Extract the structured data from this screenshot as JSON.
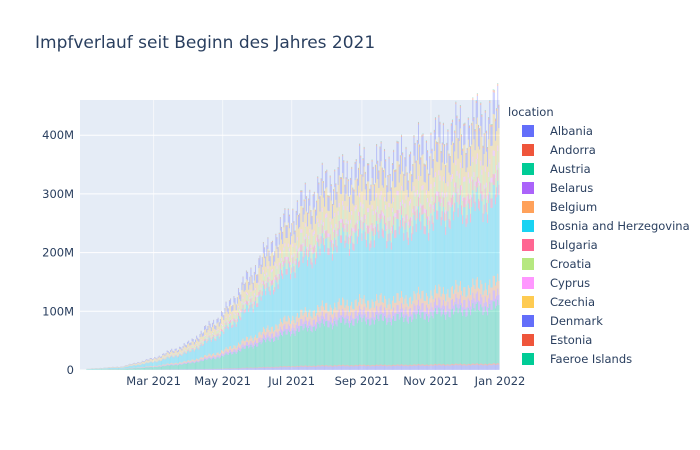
{
  "chart_data": {
    "type": "bar",
    "barmode": "stack",
    "title": "Impfverlauf seit Beginn des Jahres 2021",
    "xlabel": "",
    "ylabel": "",
    "x_ticks": [
      "Mar 2021",
      "May 2021",
      "Jul 2021",
      "Sep 2021",
      "Nov 2021",
      "Jan 2022"
    ],
    "x_range": [
      "2020-12-26",
      "2022-01-01"
    ],
    "y_ticks": [
      "0",
      "100M",
      "200M",
      "300M",
      "400M"
    ],
    "ylim": [
      0,
      460000000
    ],
    "grid": true,
    "legend": {
      "title": "location",
      "placement": "right",
      "entries": [
        {
          "name": "Albania",
          "color": "#636efa"
        },
        {
          "name": "Andorra",
          "color": "#EF553B"
        },
        {
          "name": "Austria",
          "color": "#00cc96"
        },
        {
          "name": "Belarus",
          "color": "#ab63fa"
        },
        {
          "name": "Belgium",
          "color": "#FFA15A"
        },
        {
          "name": "Bosnia and Herzegovina",
          "color": "#19d3f3"
        },
        {
          "name": "Bulgaria",
          "color": "#FF6692"
        },
        {
          "name": "Croatia",
          "color": "#B6E880"
        },
        {
          "name": "Cyprus",
          "color": "#FF97FF"
        },
        {
          "name": "Czechia",
          "color": "#FECB52"
        },
        {
          "name": "Denmark",
          "color": "#636efa"
        },
        {
          "name": "Estonia",
          "color": "#EF553B"
        },
        {
          "name": "Faeroe Islands",
          "color": "#00cc96"
        }
      ]
    },
    "total_stack_by_date": {
      "x": [
        "2021-01-01",
        "2021-02-01",
        "2021-03-01",
        "2021-04-01",
        "2021-05-01",
        "2021-06-01",
        "2021-07-01",
        "2021-08-01",
        "2021-09-01",
        "2021-10-01",
        "2021-11-01",
        "2021-12-01",
        "2021-12-31"
      ],
      "y": [
        2000000,
        6000000,
        20000000,
        45000000,
        95000000,
        180000000,
        265000000,
        320000000,
        345000000,
        355000000,
        385000000,
        415000000,
        440000000
      ]
    },
    "series_share_of_total": [
      0.015,
      0.004,
      0.17,
      0.03,
      0.04,
      0.25,
      0.03,
      0.05,
      0.015,
      0.1,
      0.06,
      0.006,
      0.002
    ]
  }
}
